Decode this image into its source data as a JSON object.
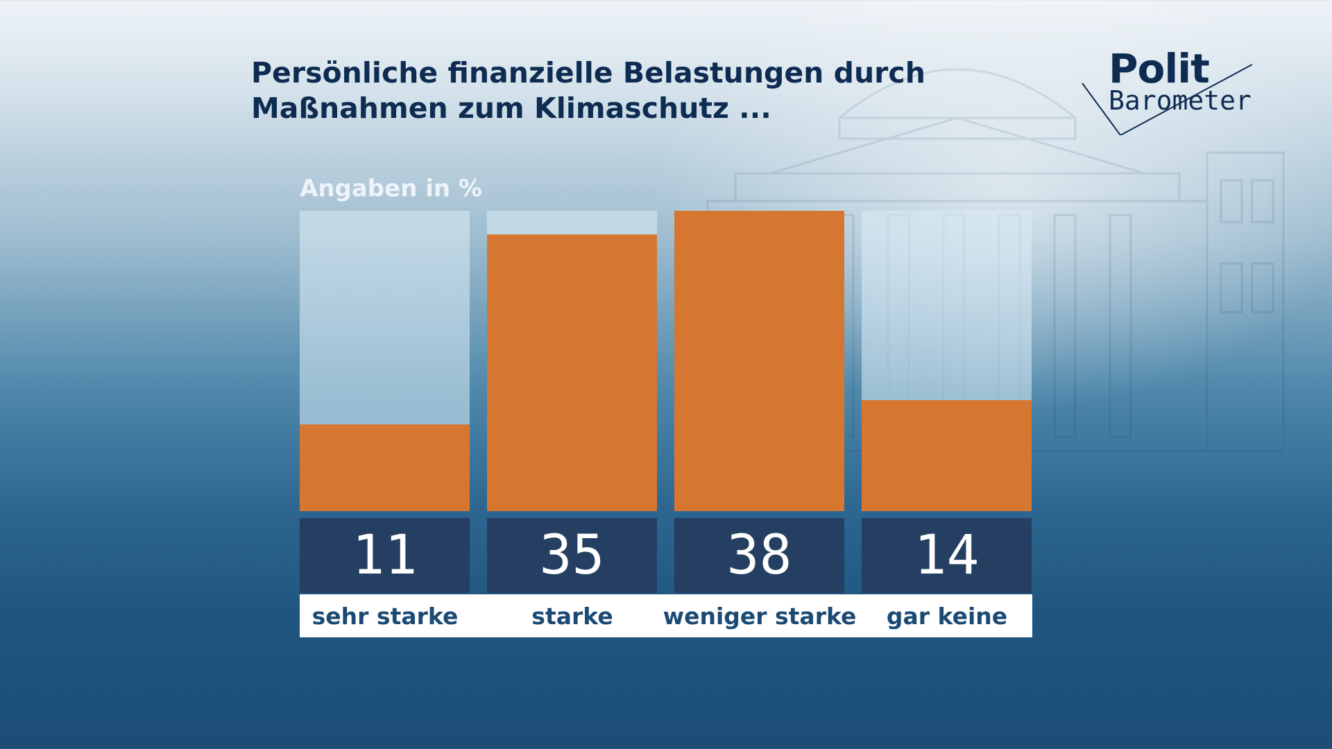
{
  "title_line1": "Persönliche finanzielle Belastungen durch",
  "title_line2": "Maßnahmen zum Klimaschutz ...",
  "logo": {
    "line1": "Polit",
    "line2": "Barometer"
  },
  "colors": {
    "bar": "#d67731",
    "value_box": "#243f61",
    "label_text": "#1b4a74",
    "title": "#0e2c52"
  },
  "chart_data": {
    "type": "bar",
    "ylabel": "Angaben in %",
    "categories": [
      "sehr starke",
      "starke",
      "weniger starke",
      "gar keine"
    ],
    "values": [
      11,
      35,
      38,
      14
    ],
    "ylim": [
      0,
      38
    ],
    "grid": false,
    "legend": "none"
  }
}
